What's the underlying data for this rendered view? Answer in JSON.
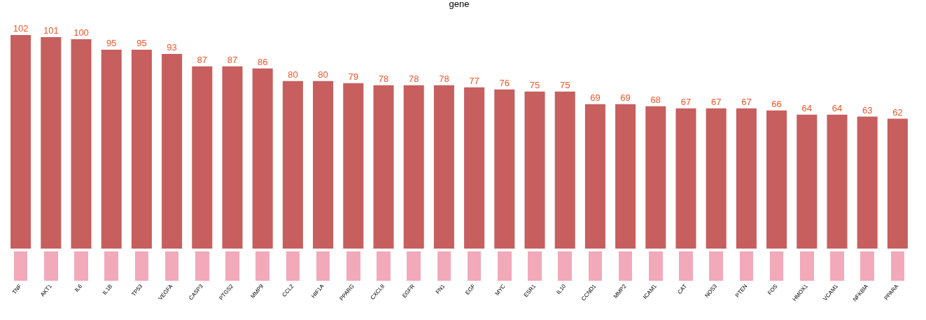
{
  "chart_data": {
    "type": "bar",
    "title": "gene",
    "categories": [
      "TNF",
      "AKT1",
      "IL6",
      "IL1B",
      "TP53",
      "VEGFA",
      "CASP3",
      "PTGS2",
      "MMP9",
      "CCL2",
      "HIF1A",
      "PPARG",
      "CXCL8",
      "EGFR",
      "FN1",
      "EGF",
      "MYC",
      "ESR1",
      "IL10",
      "CCND1",
      "MMP2",
      "ICAM1",
      "CAT",
      "NOS3",
      "PTEN",
      "FOS",
      "HMOX1",
      "VCAM1",
      "NFKBIA",
      "PPARA"
    ],
    "values": [
      102,
      101,
      100,
      95,
      95,
      93,
      87,
      87,
      86,
      80,
      80,
      79,
      78,
      78,
      78,
      77,
      76,
      75,
      75,
      69,
      69,
      68,
      67,
      67,
      67,
      66,
      64,
      64,
      63,
      62
    ],
    "color": "#c65f5e",
    "data_labels": true,
    "tick_labels": "x"
  }
}
